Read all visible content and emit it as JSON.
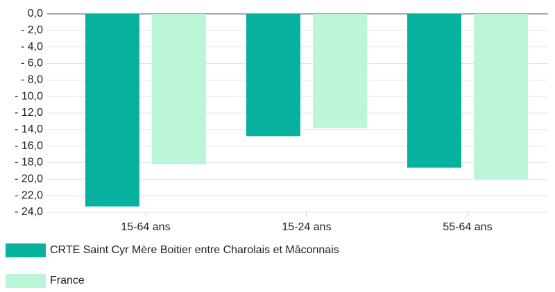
{
  "chart_data": {
    "type": "bar",
    "categories": [
      "15-64 ans",
      "15-24 ans",
      "55-64 ans"
    ],
    "series": [
      {
        "name": "CRTE Saint Cyr Mère Boitier entre Charolais et Mâconnais",
        "color": "#06b19e",
        "values": [
          -23.3,
          -14.8,
          -18.6
        ]
      },
      {
        "name": "France",
        "color": "#bbf5da",
        "values": [
          -18.2,
          -13.8,
          -20.1
        ]
      }
    ],
    "ylim": [
      -24,
      0
    ],
    "yticks": [
      {
        "value": 0,
        "label": "0,0"
      },
      {
        "value": -2,
        "label": "- 2,0"
      },
      {
        "value": -4,
        "label": "- 4,0"
      },
      {
        "value": -6,
        "label": "- 6,0"
      },
      {
        "value": -8,
        "label": "- 8,0"
      },
      {
        "value": -10,
        "label": "- 10,0"
      },
      {
        "value": -12,
        "label": "- 12,0"
      },
      {
        "value": -14,
        "label": "- 14,0"
      },
      {
        "value": -16,
        "label": "- 16,0"
      },
      {
        "value": -18,
        "label": "- 18,0"
      },
      {
        "value": -20,
        "label": "- 20,0"
      },
      {
        "value": -22,
        "label": "- 22,0"
      },
      {
        "value": -24,
        "label": "- 24,0"
      }
    ],
    "grid": true
  }
}
